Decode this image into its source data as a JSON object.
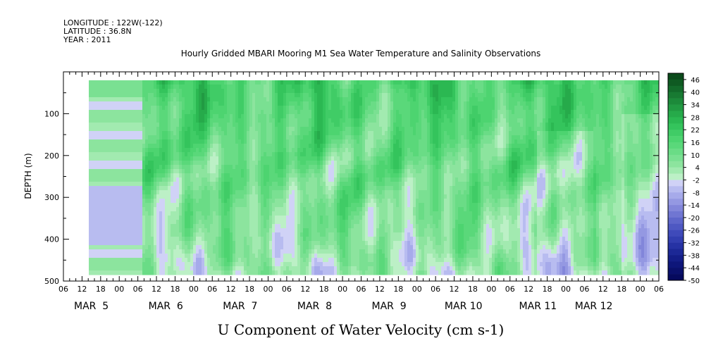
{
  "header": {
    "longitude": "LONGITUDE : 122W(-122)",
    "latitude": "LATITUDE : 36.8N",
    "year": "YEAR : 2011"
  },
  "chart_data": {
    "type": "heatmap",
    "title": "Hourly Gridded MBARI Mooring M1 Sea Water Temperature and Salinity Observations",
    "xlabel": "U Component of Water Velocity (cm s-1)",
    "ylabel": "DEPTH (m)",
    "ylim": [
      500,
      0
    ],
    "y_ticks": [
      100,
      200,
      300,
      400,
      500
    ],
    "x_hour_ticks": [
      "06",
      "12",
      "18",
      "00",
      "06",
      "12",
      "18",
      "00",
      "06",
      "12",
      "18",
      "00",
      "06",
      "12",
      "18",
      "00",
      "06",
      "12",
      "18",
      "00",
      "06",
      "12",
      "18",
      "00",
      "06",
      "12",
      "18",
      "00",
      "06",
      "12",
      "18",
      "00",
      "06"
    ],
    "x_day_labels": [
      "MAR  5",
      "MAR  6",
      "MAR  7",
      "MAR  8",
      "MAR  9",
      "MAR 10",
      "MAR 11",
      "MAR 12"
    ],
    "data_start_day": "MAR 5 13:00",
    "colorbar": {
      "labels": [
        "46",
        "40",
        "34",
        "28",
        "22",
        "16",
        "10",
        "4",
        "-2",
        "-8",
        "-14",
        "-20",
        "-26",
        "-32",
        "-38",
        "-44",
        "-50"
      ],
      "levels": [
        49,
        46,
        43,
        40,
        37,
        34,
        31,
        28,
        25,
        22,
        19,
        16,
        13,
        10,
        7,
        4,
        1,
        -2,
        -5,
        -8,
        -11,
        -14,
        -17,
        -20,
        -23,
        -26,
        -29,
        -32,
        -35,
        -38,
        -41,
        -44,
        -47,
        -50
      ],
      "colors": [
        "#0a4a1a",
        "#0f5a22",
        "#136a2a",
        "#187a32",
        "#1c8a3a",
        "#219a42",
        "#26aa4a",
        "#2bb852",
        "#34c45c",
        "#40cc66",
        "#4dd470",
        "#5ad87a",
        "#6adc86",
        "#7ae092",
        "#8ce49e",
        "#a2eab0",
        "#bcf0c6",
        "#d0d2f6",
        "#b8bcf0",
        "#a6aaea",
        "#9498e2",
        "#8286da",
        "#7076d2",
        "#5e66ca",
        "#4e58c2",
        "#3f4aba",
        "#323eb0",
        "#2632a4",
        "#1c2896",
        "#141e88",
        "#0e167a",
        "#0a106c",
        "#060a5e"
      ]
    },
    "grid": false,
    "legend_position": "right"
  }
}
